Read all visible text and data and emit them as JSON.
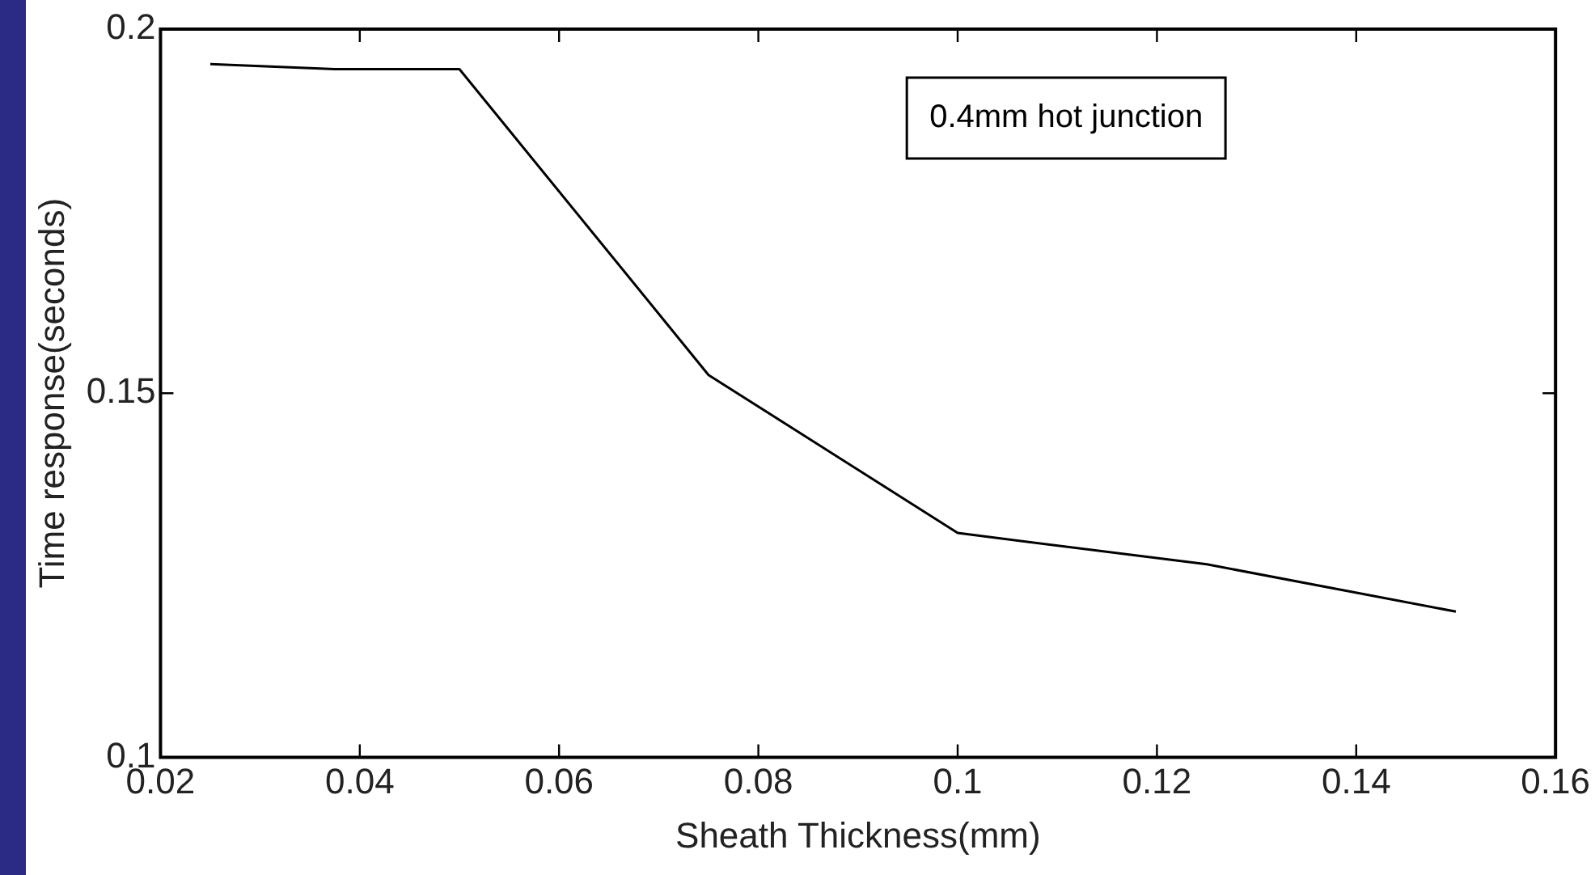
{
  "chart_data": {
    "type": "line",
    "xlabel": "Sheath Thickness(mm)",
    "ylabel": "Time response(seconds)",
    "x": [
      0.025,
      0.0375,
      0.05,
      0.075,
      0.1,
      0.125,
      0.15
    ],
    "series": [
      {
        "color": "#000000",
        "values": [
          0.1952,
          0.1945,
          0.1945,
          0.1525,
          0.1308,
          0.1265,
          0.12
        ]
      }
    ],
    "xlim": [
      0.02,
      0.16
    ],
    "xticks": [
      0.02,
      0.04,
      0.06,
      0.08,
      0.1,
      0.12,
      0.14,
      0.16
    ],
    "ylim": [
      0.1,
      0.2
    ],
    "yticks": [
      0.1,
      0.15,
      0.2
    ],
    "annotations": [
      "0.4mm hot junction"
    ],
    "grid": false,
    "legend": false,
    "marker": "none",
    "line_style": "solid"
  }
}
